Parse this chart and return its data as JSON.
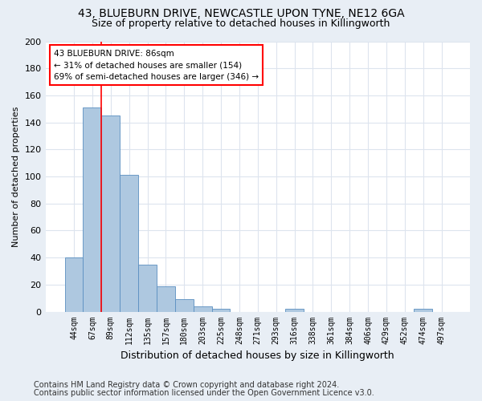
{
  "title_line1": "43, BLUEBURN DRIVE, NEWCASTLE UPON TYNE, NE12 6GA",
  "title_line2": "Size of property relative to detached houses in Killingworth",
  "xlabel": "Distribution of detached houses by size in Killingworth",
  "ylabel": "Number of detached properties",
  "bar_labels": [
    "44sqm",
    "67sqm",
    "89sqm",
    "112sqm",
    "135sqm",
    "157sqm",
    "180sqm",
    "203sqm",
    "225sqm",
    "248sqm",
    "271sqm",
    "293sqm",
    "316sqm",
    "338sqm",
    "361sqm",
    "384sqm",
    "406sqm",
    "429sqm",
    "452sqm",
    "474sqm",
    "497sqm"
  ],
  "bar_values": [
    40,
    151,
    145,
    101,
    35,
    19,
    9,
    4,
    2,
    0,
    0,
    0,
    2,
    0,
    0,
    0,
    0,
    0,
    0,
    2,
    0
  ],
  "bar_color": "#aec8e0",
  "bar_edge_color": "#5a8fc0",
  "annotation_text": "43 BLUEBURN DRIVE: 86sqm\n← 31% of detached houses are smaller (154)\n69% of semi-detached houses are larger (346) →",
  "annotation_box_color": "white",
  "annotation_box_edge_color": "red",
  "vline_color": "red",
  "ylim": [
    0,
    200
  ],
  "yticks": [
    0,
    20,
    40,
    60,
    80,
    100,
    120,
    140,
    160,
    180,
    200
  ],
  "footer_line1": "Contains HM Land Registry data © Crown copyright and database right 2024.",
  "footer_line2": "Contains public sector information licensed under the Open Government Licence v3.0.",
  "fig_background_color": "#e8eef5",
  "plot_background_color": "#ffffff",
  "grid_color": "#dde4ee",
  "title_fontsize": 10,
  "subtitle_fontsize": 9,
  "footer_fontsize": 7
}
